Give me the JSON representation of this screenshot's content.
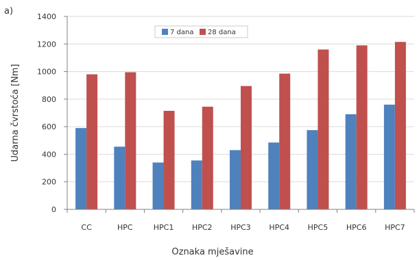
{
  "chart_data": {
    "type": "bar",
    "panel_label": "a)",
    "xlabel": "Oznaka mješavine",
    "ylabel": "Udarna čvrstoća [Nm]",
    "categories": [
      "CC",
      "HPC",
      "HPC1",
      "HPC2",
      "HPC3",
      "HPC4",
      "HPC5",
      "HPC6",
      "HPC7"
    ],
    "series": [
      {
        "name": "7 dana",
        "color": "#4f81bd",
        "values": [
          590,
          455,
          340,
          355,
          430,
          485,
          575,
          690,
          760
        ]
      },
      {
        "name": "28 dana",
        "color": "#c0504d",
        "values": [
          980,
          995,
          715,
          745,
          895,
          985,
          1160,
          1190,
          1215
        ]
      }
    ],
    "ylim": [
      0,
      1400
    ],
    "yticks": [
      0,
      200,
      400,
      600,
      800,
      1000,
      1200,
      1400
    ],
    "grid": true,
    "legend": "top-center"
  }
}
